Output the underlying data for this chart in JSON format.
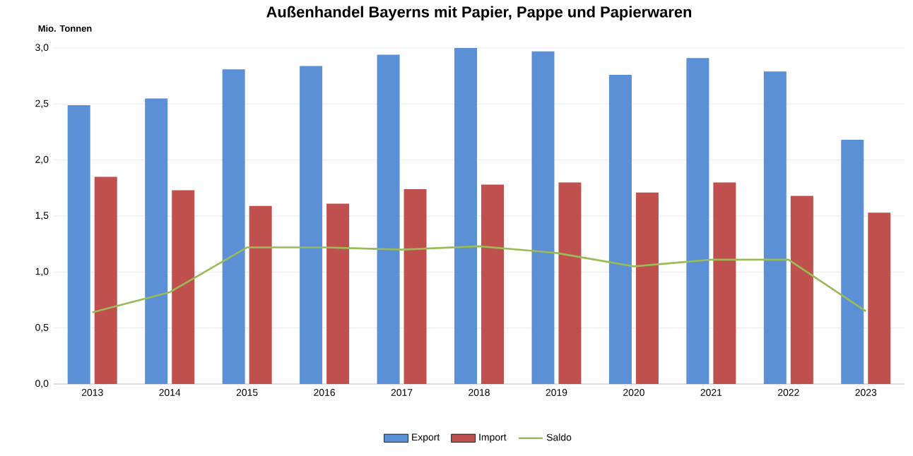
{
  "chart_data": {
    "type": "bar",
    "title": "Außenhandel Bayerns mit Papier, Pappe und Papierwaren",
    "ylabel": "Mio. Tonnen",
    "categories": [
      "2013",
      "2014",
      "2015",
      "2016",
      "2017",
      "2018",
      "2019",
      "2020",
      "2021",
      "2022",
      "2023"
    ],
    "series": [
      {
        "name": "Export",
        "color": "#5b8fd6",
        "values": [
          2.49,
          2.55,
          2.81,
          2.84,
          2.94,
          3.0,
          2.97,
          2.76,
          2.91,
          2.79,
          2.18
        ]
      },
      {
        "name": "Import",
        "color": "#c0504d",
        "values": [
          1.85,
          1.73,
          1.59,
          1.61,
          1.74,
          1.78,
          1.8,
          1.71,
          1.8,
          1.68,
          1.53
        ]
      },
      {
        "name": "Saldo",
        "type": "line",
        "color": "#9bbb59",
        "values": [
          0.64,
          0.82,
          1.22,
          1.22,
          1.2,
          1.23,
          1.17,
          1.05,
          1.11,
          1.11,
          0.65
        ]
      }
    ],
    "ylim": [
      0,
      3.0
    ],
    "yticks": [
      {
        "value": 0,
        "label": "0,0"
      },
      {
        "value": 0.5,
        "label": "0,5"
      },
      {
        "value": 1.0,
        "label": "1,0"
      },
      {
        "value": 1.5,
        "label": "1,5"
      },
      {
        "value": 2.0,
        "label": "2,0"
      },
      {
        "value": 2.5,
        "label": "2,5"
      },
      {
        "value": 3.0,
        "label": "3,0"
      }
    ],
    "grid": "y",
    "legend": "bottom"
  }
}
